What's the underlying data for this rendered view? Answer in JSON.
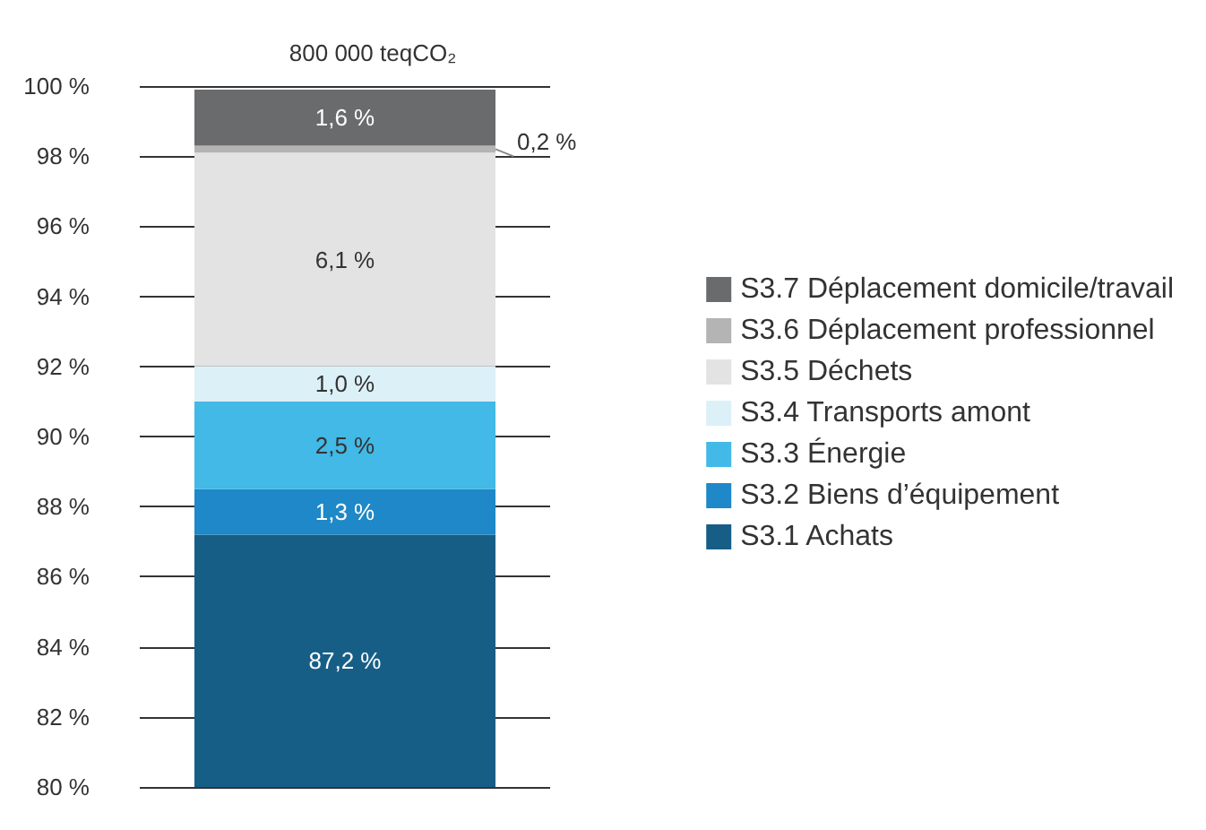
{
  "chart_data": {
    "type": "bar",
    "title": "800 000 teqCO₂",
    "categories": [
      null
    ],
    "grid": "y",
    "legend": "right",
    "ylim": [
      80,
      100
    ],
    "yticks": [
      {
        "value": 80,
        "label": "80 %"
      },
      {
        "value": 82,
        "label": "82 %"
      },
      {
        "value": 84,
        "label": "84 %"
      },
      {
        "value": 86,
        "label": "86 %"
      },
      {
        "value": 88,
        "label": "88 %"
      },
      {
        "value": 90,
        "label": "90 %"
      },
      {
        "value": 92,
        "label": "92 %"
      },
      {
        "value": 94,
        "label": "94 %"
      },
      {
        "value": 96,
        "label": "96 %"
      },
      {
        "value": 98,
        "label": "98 %"
      },
      {
        "value": 100,
        "label": "100 %"
      }
    ],
    "series": [
      {
        "name": "S3.1 Achats",
        "color": "#175e87",
        "values": [
          87.2
        ],
        "base": [
          0
        ],
        "value_labels": [
          "87,2 %"
        ]
      },
      {
        "name": "S3.2 Biens d’équipement",
        "color": "#1e88c8",
        "values": [
          1.3
        ],
        "base": [
          87.2
        ],
        "value_labels": [
          "1,3 %"
        ]
      },
      {
        "name": "S3.3 Énergie",
        "color": "#42b9e6",
        "values": [
          2.5
        ],
        "base": [
          88.5
        ],
        "value_labels": [
          "2,5 %"
        ]
      },
      {
        "name": "S3.4 Transports amont",
        "color": "#dcf0f8",
        "values": [
          1.0
        ],
        "base": [
          91.0
        ],
        "value_labels": [
          "1,0 %"
        ]
      },
      {
        "name": "S3.5 Déchets",
        "color": "#e3e3e3",
        "values": [
          6.1
        ],
        "base": [
          92.0
        ],
        "value_labels": [
          "6,1 %"
        ]
      },
      {
        "name": "S3.6 Déplacement professionnel",
        "color": "#b4b4b4",
        "values": [
          0.2
        ],
        "base": [
          98.1
        ],
        "value_labels": [
          "0,2 %"
        ]
      },
      {
        "name": "S3.7 Déplacement domicile/travail",
        "color": "#696b6d",
        "values": [
          1.6
        ],
        "base": [
          98.3
        ],
        "value_labels": [
          "1,6 %"
        ]
      }
    ]
  }
}
